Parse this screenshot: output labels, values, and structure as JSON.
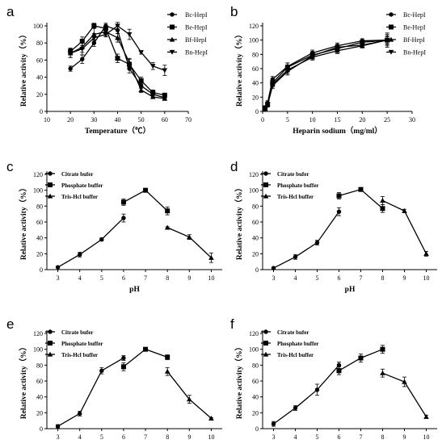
{
  "chart_data": [
    {
      "panel_label": "a",
      "type": "line",
      "xlabel": "Temperature（℃）",
      "ylabel": "Relative activity（%）",
      "xlim": [
        10,
        70
      ],
      "ylim": [
        0,
        100
      ],
      "xticks": [
        10,
        20,
        30,
        40,
        50,
        60,
        70
      ],
      "yticks": [
        0,
        20,
        40,
        60,
        80,
        100
      ],
      "x": [
        20,
        25,
        30,
        35,
        40,
        45,
        50,
        55,
        60
      ],
      "legend_position": "top-right",
      "series": [
        {
          "name": "Bc-HepI",
          "marker": "circle",
          "values": [
            50,
            61,
            80,
            100,
            95,
            50,
            30,
            20,
            16
          ],
          "errors": [
            3,
            5,
            4,
            3,
            4,
            5,
            3,
            3,
            2
          ]
        },
        {
          "name": "Be-HepI",
          "marker": "square",
          "values": [
            70,
            82,
            100,
            97,
            62,
            55,
            36,
            22,
            19
          ],
          "errors": [
            4,
            5,
            3,
            3,
            5,
            6,
            4,
            3,
            2
          ]
        },
        {
          "name": "Bf-HepI",
          "marker": "triangle-up",
          "values": [
            68,
            75,
            90,
            93,
            86,
            57,
            25,
            17,
            15
          ],
          "errors": [
            5,
            6,
            7,
            5,
            5,
            5,
            3,
            2,
            2
          ]
        },
        {
          "name": "Bn-HepI",
          "marker": "triangle-down",
          "values": [
            68,
            73,
            86,
            90,
            100,
            90,
            69,
            53,
            48
          ],
          "errors": [
            5,
            7,
            5,
            3,
            4,
            6,
            2,
            4,
            6
          ]
        }
      ]
    },
    {
      "panel_label": "b",
      "type": "line",
      "xlabel": "Heparin sodium（mg/ml）",
      "ylabel": "Relative activity（%）",
      "xlim": [
        0,
        30
      ],
      "ylim": [
        0,
        120
      ],
      "xticks": [
        0,
        5,
        10,
        15,
        20,
        25,
        30
      ],
      "yticks": [
        0,
        20,
        40,
        60,
        80,
        100,
        120
      ],
      "x": [
        0.5,
        1,
        2,
        5,
        10,
        15,
        20,
        25
      ],
      "legend_position": "top-right",
      "series": [
        {
          "name": "Bc-HepI",
          "marker": "circle",
          "values": [
            5,
            12,
            45,
            63,
            82,
            92,
            99,
            100
          ],
          "errors": [
            2,
            3,
            4,
            5,
            4,
            4,
            3,
            6
          ]
        },
        {
          "name": "Be-HepI",
          "marker": "square",
          "values": [
            5,
            10,
            40,
            62,
            79,
            88,
            97,
            100
          ],
          "errors": [
            2,
            3,
            4,
            6,
            5,
            4,
            3,
            5
          ]
        },
        {
          "name": "Bf-HepI",
          "marker": "triangle-up",
          "values": [
            4,
            10,
            38,
            58,
            76,
            85,
            92,
            100
          ],
          "errors": [
            2,
            3,
            4,
            5,
            4,
            4,
            3,
            8
          ]
        },
        {
          "name": "Bn-HepI",
          "marker": "triangle-down",
          "values": [
            3,
            9,
            36,
            56,
            78,
            90,
            93,
            100
          ],
          "errors": [
            2,
            3,
            4,
            5,
            4,
            4,
            3,
            10
          ]
        }
      ]
    },
    {
      "panel_label": "c",
      "type": "line",
      "xlabel": "pH",
      "ylabel": "Relative activity（%）",
      "xlim": [
        2.5,
        10.5
      ],
      "ylim": [
        0,
        120
      ],
      "xticks": [
        3,
        4,
        5,
        6,
        7,
        8,
        9,
        10
      ],
      "yticks": [
        0,
        20,
        40,
        60,
        80,
        100,
        120
      ],
      "legend_position": "top-left",
      "series": [
        {
          "name": "Citrate bufer",
          "marker": "circle",
          "x": [
            3,
            4,
            5,
            6
          ],
          "values": [
            3,
            19,
            38,
            65
          ],
          "errors": [
            1,
            3,
            2,
            5
          ]
        },
        {
          "name": "Phosphate buffer",
          "marker": "square",
          "x": [
            6,
            7,
            8
          ],
          "values": [
            85,
            100,
            74
          ],
          "errors": [
            4,
            2,
            5
          ]
        },
        {
          "name": "Tris-Hcl buffer",
          "marker": "triangle-up",
          "x": [
            8,
            9,
            10
          ],
          "values": [
            53,
            41,
            15
          ],
          "errors": [
            1,
            3,
            6
          ]
        }
      ]
    },
    {
      "panel_label": "d",
      "type": "line",
      "xlabel": "pH",
      "ylabel": "Relative activity（%）",
      "xlim": [
        2.5,
        10.5
      ],
      "ylim": [
        0,
        120
      ],
      "xticks": [
        3,
        4,
        5,
        6,
        7,
        8,
        9,
        10
      ],
      "yticks": [
        0,
        20,
        40,
        60,
        80,
        100,
        120
      ],
      "legend_position": "top-left",
      "series": [
        {
          "name": "Citrate bufer",
          "marker": "circle",
          "x": [
            3,
            4,
            5,
            6
          ],
          "values": [
            2,
            16,
            34,
            73
          ],
          "errors": [
            1,
            3,
            3,
            5
          ]
        },
        {
          "name": "Phosphate buffer",
          "marker": "square",
          "x": [
            6,
            7,
            8
          ],
          "values": [
            93,
            101,
            77
          ],
          "errors": [
            4,
            2,
            5
          ]
        },
        {
          "name": "Tris-Hcl buffer",
          "marker": "triangle-up",
          "x": [
            8,
            9,
            10
          ],
          "values": [
            87,
            74,
            20
          ],
          "errors": [
            5,
            2,
            3
          ]
        }
      ]
    },
    {
      "panel_label": "e",
      "type": "line",
      "xlabel": "pH",
      "ylabel": "Relative activity（%）",
      "xlim": [
        2.5,
        10.5
      ],
      "ylim": [
        0,
        120
      ],
      "xticks": [
        3,
        4,
        5,
        6,
        7,
        8,
        9,
        10
      ],
      "yticks": [
        0,
        20,
        40,
        60,
        80,
        100,
        120
      ],
      "legend_position": "top-left",
      "series": [
        {
          "name": "Citrate bufer",
          "marker": "circle",
          "x": [
            3,
            4,
            5,
            6
          ],
          "values": [
            3,
            19,
            73,
            89
          ],
          "errors": [
            2,
            3,
            4,
            3
          ]
        },
        {
          "name": "Phosphate buffer",
          "marker": "square",
          "x": [
            6,
            7,
            8
          ],
          "values": [
            78,
            100,
            90
          ],
          "errors": [
            5,
            2,
            3
          ]
        },
        {
          "name": "Tris-Hcl buffer",
          "marker": "triangle-up",
          "x": [
            8,
            9,
            10
          ],
          "values": [
            72,
            37,
            13
          ],
          "errors": [
            5,
            5,
            1
          ]
        }
      ]
    },
    {
      "panel_label": "f",
      "type": "line",
      "xlabel": "pH",
      "ylabel": "Relative activity（%）",
      "xlim": [
        2.5,
        10.5
      ],
      "ylim": [
        0,
        120
      ],
      "xticks": [
        3,
        4,
        5,
        6,
        7,
        8,
        9,
        10
      ],
      "yticks": [
        0,
        20,
        40,
        60,
        80,
        100,
        120
      ],
      "legend_position": "top-left",
      "series": [
        {
          "name": "Citrate bufer",
          "marker": "circle",
          "x": [
            3,
            4,
            5,
            6
          ],
          "values": [
            6,
            26,
            49,
            80
          ],
          "errors": [
            3,
            3,
            7,
            4
          ]
        },
        {
          "name": "Phosphate buffer",
          "marker": "square",
          "x": [
            6,
            7,
            8
          ],
          "values": [
            73,
            89,
            100
          ],
          "errors": [
            5,
            5,
            5
          ]
        },
        {
          "name": "Tris-Hcl buffer",
          "marker": "triangle-up",
          "x": [
            8,
            9,
            10
          ],
          "values": [
            70,
            59,
            15
          ],
          "errors": [
            5,
            6,
            2
          ]
        }
      ]
    }
  ]
}
